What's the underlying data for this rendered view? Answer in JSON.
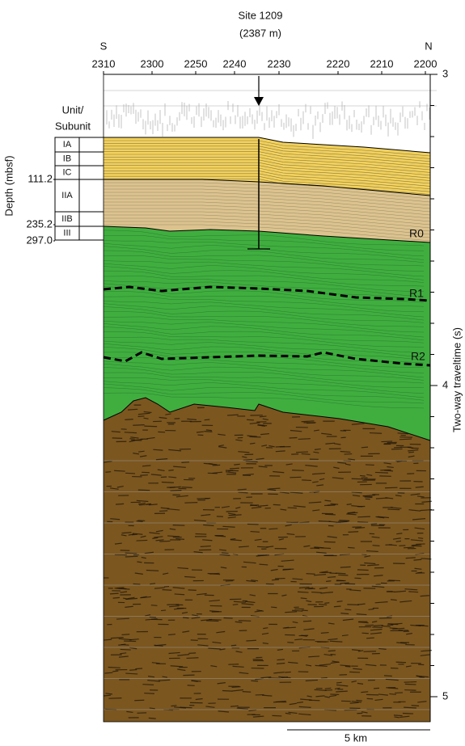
{
  "header": {
    "site": "Site 1209",
    "water_depth": "(2387 m)"
  },
  "directions": [
    "S",
    "N"
  ],
  "shotpoints": [
    "2310",
    "2300",
    "2250",
    "2240",
    "2230",
    "2220",
    "2210",
    "2200"
  ],
  "units": {
    "heading": [
      "Unit/",
      "Subunit"
    ],
    "labels": [
      "IA",
      "IB",
      "IC",
      "IIA",
      "IIB",
      "III"
    ],
    "depths": [
      "111.2",
      "235.2",
      "297.0"
    ],
    "axis_title": "Depth (mbsf)"
  },
  "traveltime": {
    "ticks": [
      "3",
      "4",
      "5"
    ],
    "title": "Two-way traveltime (s)"
  },
  "reflectors": [
    "R0",
    "R1",
    "R2"
  ],
  "scale": "5 km"
}
